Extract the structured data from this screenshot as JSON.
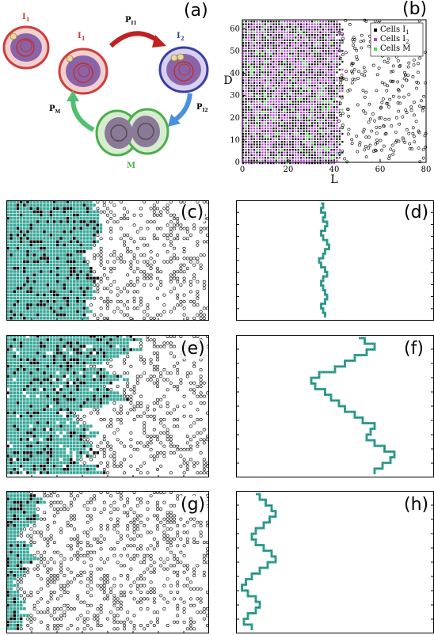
{
  "panels": {
    "a": {
      "letter": "(a)"
    },
    "b": {
      "letter": "(b)"
    },
    "c": {
      "letter": "(c)"
    },
    "d": {
      "letter": "(d)"
    },
    "e": {
      "letter": "(e)"
    },
    "f": {
      "letter": "(f)"
    },
    "g": {
      "letter": "(g)"
    },
    "h": {
      "letter": "(h)"
    }
  },
  "cycle": {
    "cell_i1_left": "I",
    "cell_i1_left_sub": "1",
    "cell_i1_top": "I",
    "cell_i1_top_sub": "1",
    "cell_i2": "I",
    "cell_i2_sub": "2",
    "cell_m": "M",
    "arrow_top": "P",
    "arrow_top_sub": "I1",
    "arrow_right": "P",
    "arrow_right_sub": "I2",
    "arrow_left": "P",
    "arrow_left_sub": "M",
    "colors": {
      "i1": "#d03c3c",
      "i2": "#3a3fa0",
      "m": "#4cae4c",
      "cytoplasm": "#8a64a8"
    }
  },
  "chart_data": [
    {
      "panel": "b",
      "type": "scatter",
      "xlabel": "L",
      "ylabel": "D",
      "xlim": [
        0,
        80
      ],
      "ylim": [
        0,
        64
      ],
      "xticks": [
        "0",
        "20",
        "40",
        "60",
        "80"
      ],
      "yticks": [
        "0",
        "10",
        "20",
        "30",
        "40",
        "50",
        "60"
      ],
      "legend": [
        "Cells I1",
        "Cells I2",
        "Cells M"
      ],
      "legend_text": {
        "prefix": "Cells ",
        "i1": "I",
        "i1_sub": "1",
        "i2": "I",
        "i2_sub": "2",
        "m": "M"
      },
      "legend_position": "top-right",
      "front_x": 42,
      "colors": {
        "i1": "#000000",
        "i2": "#b040d0",
        "m": "#44dd44"
      }
    },
    {
      "panel": "c",
      "type": "scatter",
      "front_x": 0.45,
      "front_roughness": 0.03,
      "dense_color": "#3aa89a"
    },
    {
      "panel": "d",
      "type": "line",
      "color": "#3aa89a",
      "front": [
        0.43,
        0.44,
        0.43,
        0.45,
        0.44,
        0.46,
        0.45,
        0.43,
        0.44,
        0.46,
        0.47,
        0.45,
        0.44,
        0.42,
        0.43,
        0.45,
        0.46,
        0.44,
        0.43,
        0.44,
        0.45,
        0.46,
        0.45,
        0.43,
        0.44,
        0.45
      ]
    },
    {
      "panel": "e",
      "type": "scatter",
      "front_x": 0.62,
      "front_roughness": 0.1,
      "dense_color": "#3aa89a"
    },
    {
      "panel": "f",
      "type": "line",
      "color": "#3aa89a",
      "front": [
        0.62,
        0.65,
        0.7,
        0.66,
        0.6,
        0.55,
        0.5,
        0.42,
        0.38,
        0.4,
        0.45,
        0.48,
        0.52,
        0.55,
        0.6,
        0.64,
        0.7,
        0.68,
        0.66,
        0.7,
        0.75,
        0.8,
        0.78,
        0.74,
        0.7
      ]
    },
    {
      "panel": "g",
      "type": "scatter",
      "front_x": 0.09,
      "front_roughness": 0.05,
      "dense_color": "#3aa89a"
    },
    {
      "panel": "h",
      "type": "line",
      "color": "#3aa89a",
      "front": [
        0.1,
        0.12,
        0.15,
        0.18,
        0.2,
        0.17,
        0.14,
        0.1,
        0.08,
        0.1,
        0.14,
        0.18,
        0.2,
        0.16,
        0.12,
        0.08,
        0.05,
        0.03,
        0.06,
        0.1,
        0.12,
        0.1,
        0.06,
        0.04,
        0.08
      ]
    }
  ]
}
